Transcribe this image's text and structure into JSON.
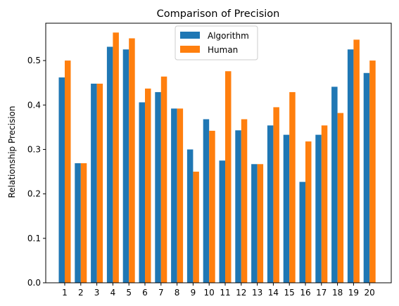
{
  "chart_data": {
    "type": "bar",
    "title": "Comparison of Precision",
    "xlabel": "",
    "ylabel": "Relationship Precision",
    "categories": [
      "1",
      "2",
      "3",
      "4",
      "5",
      "6",
      "7",
      "8",
      "9",
      "10",
      "11",
      "12",
      "13",
      "14",
      "15",
      "16",
      "17",
      "18",
      "19",
      "20"
    ],
    "series": [
      {
        "name": "Algorithm",
        "color": "#1f77b4",
        "values": [
          0.462,
          0.269,
          0.448,
          0.531,
          0.525,
          0.406,
          0.429,
          0.392,
          0.3,
          0.368,
          0.275,
          0.343,
          0.267,
          0.354,
          0.333,
          0.227,
          0.333,
          0.441,
          0.525,
          0.472
        ]
      },
      {
        "name": "Human",
        "color": "#ff7f0e",
        "values": [
          0.5,
          0.269,
          0.448,
          0.563,
          0.55,
          0.437,
          0.464,
          0.392,
          0.25,
          0.342,
          0.476,
          0.368,
          0.267,
          0.395,
          0.429,
          0.318,
          0.354,
          0.382,
          0.547,
          0.5
        ]
      }
    ],
    "ylim": [
      0,
      0.584
    ],
    "yticks": [
      0.0,
      0.1,
      0.2,
      0.3,
      0.4,
      0.5
    ],
    "ytick_labels": [
      "0.0",
      "0.1",
      "0.2",
      "0.3",
      "0.4",
      "0.5"
    ],
    "grid": false,
    "legend_position": "top-center"
  }
}
